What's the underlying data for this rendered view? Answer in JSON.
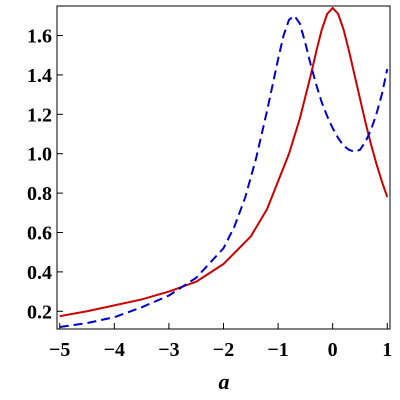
{
  "chart_data": {
    "type": "line",
    "xlabel": "a",
    "ylabel": "",
    "xlim": [
      -5.05,
      1.05
    ],
    "ylim": [
      0.11,
      1.75
    ],
    "x_ticks": [
      -5,
      -4,
      -3,
      -2,
      -1,
      0,
      1
    ],
    "x_tick_labels": [
      "−5",
      "−4",
      "−3",
      "−2",
      "−1",
      "0",
      "1"
    ],
    "y_ticks": [
      0.2,
      0.4,
      0.6,
      0.8,
      1.0,
      1.2,
      1.4,
      1.6
    ],
    "y_tick_labels": [
      "0.2",
      "0.4",
      "0.6",
      "0.8",
      "1.0",
      "1.2",
      "1.4",
      "1.6"
    ],
    "grid": false,
    "series": [
      {
        "color": "#cc0000",
        "dash": "solid",
        "x": [
          -5.0,
          -4.5,
          -4.0,
          -3.5,
          -3.0,
          -2.5,
          -2.0,
          -1.5,
          -1.2,
          -1.0,
          -0.8,
          -0.6,
          -0.4,
          -0.3,
          -0.2,
          -0.1,
          0.0,
          0.1,
          0.2,
          0.3,
          0.4,
          0.5,
          0.6,
          0.7,
          0.8,
          0.9,
          1.0
        ],
        "y": [
          0.175,
          0.2,
          0.23,
          0.26,
          0.3,
          0.35,
          0.44,
          0.58,
          0.72,
          0.86,
          1.0,
          1.18,
          1.4,
          1.52,
          1.63,
          1.71,
          1.74,
          1.71,
          1.63,
          1.52,
          1.4,
          1.28,
          1.16,
          1.05,
          0.95,
          0.86,
          0.78
        ]
      },
      {
        "color": "#0000cc",
        "dash": "dashed",
        "x": [
          -5.0,
          -4.5,
          -4.0,
          -3.5,
          -3.0,
          -2.5,
          -2.0,
          -1.8,
          -1.6,
          -1.4,
          -1.2,
          -1.0,
          -0.9,
          -0.8,
          -0.7,
          -0.6,
          -0.5,
          -0.4,
          -0.3,
          -0.2,
          -0.1,
          0.0,
          0.1,
          0.2,
          0.3,
          0.4,
          0.5,
          0.6,
          0.7,
          0.8,
          0.9,
          1.0
        ],
        "y": [
          0.12,
          0.14,
          0.17,
          0.22,
          0.28,
          0.37,
          0.52,
          0.63,
          0.78,
          0.98,
          1.22,
          1.48,
          1.6,
          1.68,
          1.7,
          1.66,
          1.56,
          1.45,
          1.35,
          1.26,
          1.19,
          1.13,
          1.08,
          1.04,
          1.02,
          1.01,
          1.02,
          1.06,
          1.12,
          1.2,
          1.3,
          1.43
        ]
      }
    ]
  }
}
